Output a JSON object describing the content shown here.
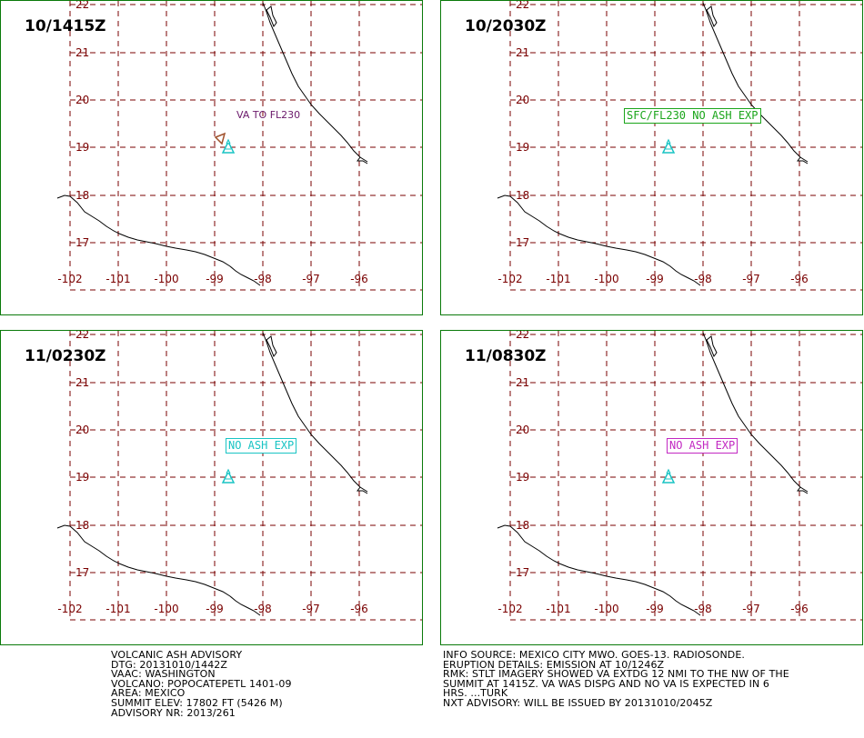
{
  "panels": [
    {
      "time": "10/1415Z",
      "note": "VA TO FL230",
      "note_style": "plain",
      "note_color": "#6b1a6b",
      "ash_area": true
    },
    {
      "time": "10/2030Z",
      "note": "SFC/FL230 NO ASH EXP",
      "note_style": "box",
      "note_color": "#1aa51a",
      "ash_area": false
    },
    {
      "time": "11/0230Z",
      "note": "NO ASH EXP",
      "note_style": "box",
      "note_color": "#19c4c4",
      "ash_area": false
    },
    {
      "time": "11/0830Z",
      "note": "NO ASH EXP",
      "note_style": "box",
      "note_color": "#c228c2",
      "ash_area": false
    }
  ],
  "map": {
    "lat_labels": [
      "22",
      "21",
      "20",
      "19",
      "18",
      "17"
    ],
    "lon_labels": [
      "-102",
      "-101",
      "-100",
      "-99",
      "-98",
      "-97",
      "-96"
    ],
    "volcano_icon": "volcano-triangle-icon",
    "volcano_color": "#19c4c4",
    "grid_color": "#7a0000",
    "coast_color": "#000000"
  },
  "advisory_left": [
    "VOLCANIC ASH ADVISORY",
    "DTG: 20131010/1442Z",
    "VAAC: WASHINGTON",
    "VOLCANO: POPOCATEPETL 1401-09",
    "AREA: MEXICO",
    "SUMMIT ELEV: 17802 FT (5426 M)",
    "ADVISORY NR: 2013/261"
  ],
  "advisory_right": [
    "INFO SOURCE: MEXICO CITY MWO. GOES-13. RADIOSONDE.",
    "ERUPTION DETAILS: EMISSION AT 10/1246Z",
    "RMK: STLT IMAGERY SHOWED VA EXTDG 12 NMI TO THE NW OF THE",
    "SUMMIT AT 1415Z. VA WAS DISPG AND NO VA IS EXPECTED IN 6",
    "HRS. ...TURK",
    "NXT ADVISORY: WILL BE ISSUED BY 20131010/2045Z"
  ]
}
